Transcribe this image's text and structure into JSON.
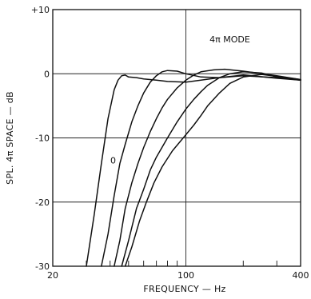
{
  "chart_data": {
    "type": "line",
    "title": "",
    "xlabel": "FREQUENCY — Hz",
    "ylabel": "SPL. 4π SPACE — dB",
    "x_scale": "log",
    "xlim": [
      20,
      400
    ],
    "ylim": [
      -30,
      10
    ],
    "x_tick_labels": [
      "20",
      "100",
      "400"
    ],
    "x_ticks": [
      20,
      100,
      400
    ],
    "y_tick_labels": [
      "+10",
      "0",
      "-10",
      "-20",
      "-30"
    ],
    "y_ticks": [
      10,
      0,
      -10,
      -20,
      -30
    ],
    "grid": true,
    "annotations": [
      {
        "text": "4π MODE",
        "x": 170,
        "y": 5.4
      },
      {
        "text": "0",
        "x": 41.5,
        "y": -13.5
      }
    ],
    "series": [
      {
        "x": [
          30,
          33,
          36,
          39,
          42,
          44,
          46,
          48,
          50,
          55,
          60,
          70,
          80,
          100,
          150,
          200,
          300,
          400
        ],
        "y": [
          -30,
          -22,
          -14,
          -7,
          -2.5,
          -1,
          -0.3,
          -0.2,
          -0.5,
          -0.6,
          -0.8,
          -1,
          -1.2,
          -1.3,
          -0.6,
          -0.2,
          -0.7,
          -1
        ]
      },
      {
        "x": [
          36,
          39,
          42,
          45,
          48,
          52,
          56,
          60,
          65,
          70,
          75,
          80,
          90,
          100,
          120,
          150,
          200,
          300,
          400
        ],
        "y": [
          -30,
          -25,
          -19,
          -14,
          -11,
          -7.5,
          -5,
          -3,
          -1.3,
          -0.3,
          0.3,
          0.5,
          0.4,
          0,
          -0.5,
          -0.6,
          -0.3,
          -0.6,
          -1
        ]
      },
      {
        "x": [
          42,
          45,
          48,
          52,
          56,
          60,
          65,
          70,
          75,
          80,
          90,
          100,
          110,
          120,
          140,
          160,
          200,
          300,
          400
        ],
        "y": [
          -30,
          -26,
          -21,
          -17,
          -14,
          -11.5,
          -9,
          -7,
          -5.3,
          -4,
          -2.2,
          -1,
          -0.2,
          0.3,
          0.6,
          0.7,
          0.4,
          -0.3,
          -0.9
        ]
      },
      {
        "x": [
          46,
          50,
          55,
          60,
          65,
          70,
          80,
          90,
          100,
          110,
          120,
          130,
          150,
          170,
          200,
          250,
          300,
          400
        ],
        "y": [
          -30,
          -26,
          -21,
          -18,
          -15,
          -13,
          -10,
          -7.5,
          -5.5,
          -4,
          -2.8,
          -1.8,
          -0.6,
          0,
          0.3,
          0.1,
          -0.5,
          -1
        ]
      },
      {
        "x": [
          48,
          52,
          57,
          62,
          68,
          75,
          85,
          100,
          110,
          120,
          130,
          150,
          170,
          200,
          250,
          300,
          400
        ],
        "y": [
          -30,
          -27,
          -23,
          -20,
          -17,
          -14.5,
          -12,
          -9.5,
          -8,
          -6.5,
          -5,
          -3,
          -1.5,
          -0.5,
          -0.1,
          -0.4,
          -0.9
        ]
      }
    ]
  }
}
